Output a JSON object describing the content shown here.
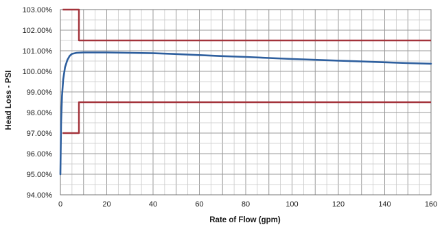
{
  "chart_data": {
    "type": "line",
    "title": "",
    "xlabel": "Rate of Flow (gpm)",
    "ylabel": "Head Loss - PSI",
    "xlim": [
      0,
      160
    ],
    "ylim": [
      94,
      103
    ],
    "x_ticks": [
      "0",
      "20",
      "40",
      "60",
      "80",
      "100",
      "120",
      "140",
      "160"
    ],
    "y_ticks": [
      "94.00%",
      "95.00%",
      "96.00%",
      "97.00%",
      "98.00%",
      "99.00%",
      "100.00%",
      "101.00%",
      "102.00%",
      "103.00%"
    ],
    "grid": true,
    "legend": "none",
    "colors": {
      "curve": "#2e5f9e",
      "limits": "#a3333b",
      "grid": "#9a9a9a",
      "minor_grid": "#c8c8c8"
    },
    "series": [
      {
        "values": [
          {
            "x": 0,
            "y": 95.0
          },
          {
            "x": 0.3,
            "y": 97.5
          },
          {
            "x": 0.7,
            "y": 98.8
          },
          {
            "x": 1.2,
            "y": 99.6
          },
          {
            "x": 2,
            "y": 100.2
          },
          {
            "x": 3,
            "y": 100.55
          },
          {
            "x": 4,
            "y": 100.75
          },
          {
            "x": 5,
            "y": 100.85
          },
          {
            "x": 7,
            "y": 100.9
          },
          {
            "x": 10,
            "y": 100.92
          },
          {
            "x": 20,
            "y": 100.92
          },
          {
            "x": 30,
            "y": 100.9
          },
          {
            "x": 40,
            "y": 100.88
          },
          {
            "x": 50,
            "y": 100.84
          },
          {
            "x": 60,
            "y": 100.79
          },
          {
            "x": 70,
            "y": 100.74
          },
          {
            "x": 80,
            "y": 100.7
          },
          {
            "x": 90,
            "y": 100.65
          },
          {
            "x": 100,
            "y": 100.6
          },
          {
            "x": 110,
            "y": 100.56
          },
          {
            "x": 120,
            "y": 100.52
          },
          {
            "x": 130,
            "y": 100.48
          },
          {
            "x": 140,
            "y": 100.44
          },
          {
            "x": 150,
            "y": 100.4
          },
          {
            "x": 160,
            "y": 100.37
          }
        ]
      },
      {
        "values": [
          {
            "x": 1,
            "y": 103.0
          },
          {
            "x": 8,
            "y": 103.0
          },
          {
            "x": 8,
            "y": 101.5
          },
          {
            "x": 160,
            "y": 101.5
          }
        ]
      },
      {
        "values": [
          {
            "x": 1,
            "y": 97.0
          },
          {
            "x": 8,
            "y": 97.0
          },
          {
            "x": 8,
            "y": 98.5
          },
          {
            "x": 160,
            "y": 98.5
          }
        ]
      }
    ]
  }
}
